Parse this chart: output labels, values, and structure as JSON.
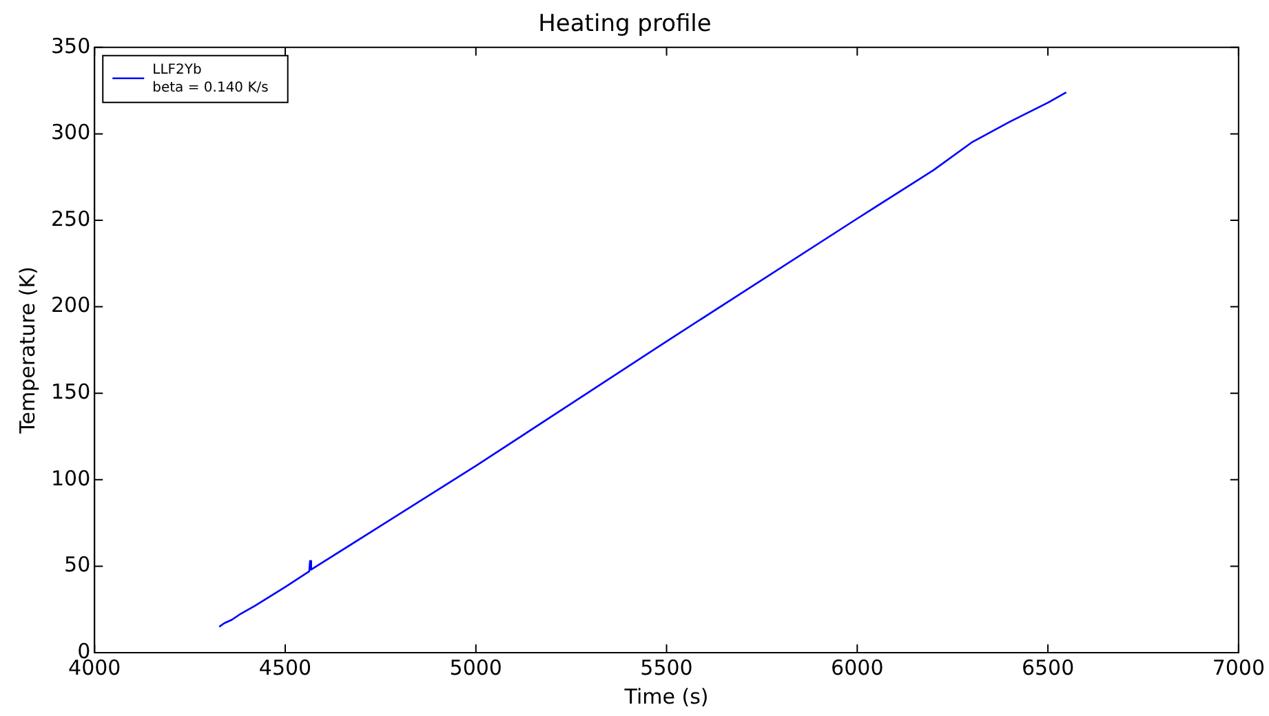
{
  "chart_data": {
    "type": "line",
    "title": "Heating profile",
    "xlabel": "Time (s)",
    "ylabel": "Temperature (K)",
    "x": [
      4327,
      4340,
      4360,
      4380,
      4420,
      4500,
      4563,
      4565,
      4568,
      4575,
      5000,
      5500,
      6000,
      6200,
      6300,
      6400,
      6500,
      6548
    ],
    "series": [
      {
        "name": "LLF2Yb\nbeta = 0.140 K/s",
        "color": "#0000ff",
        "values": [
          15,
          17,
          19,
          22,
          27,
          38,
          47,
          53,
          48,
          49,
          108,
          180,
          251,
          279,
          295,
          307,
          318,
          324
        ]
      }
    ],
    "xlim": [
      4000,
      7000
    ],
    "xticks": [
      4000,
      4500,
      5000,
      5500,
      6000,
      6500,
      7000
    ],
    "ylim": [
      0,
      350
    ],
    "yticks": [
      0,
      50,
      100,
      150,
      200,
      250,
      300,
      350
    ],
    "grid": false,
    "legend": "top left",
    "marker": "none",
    "line_style": "solid"
  }
}
